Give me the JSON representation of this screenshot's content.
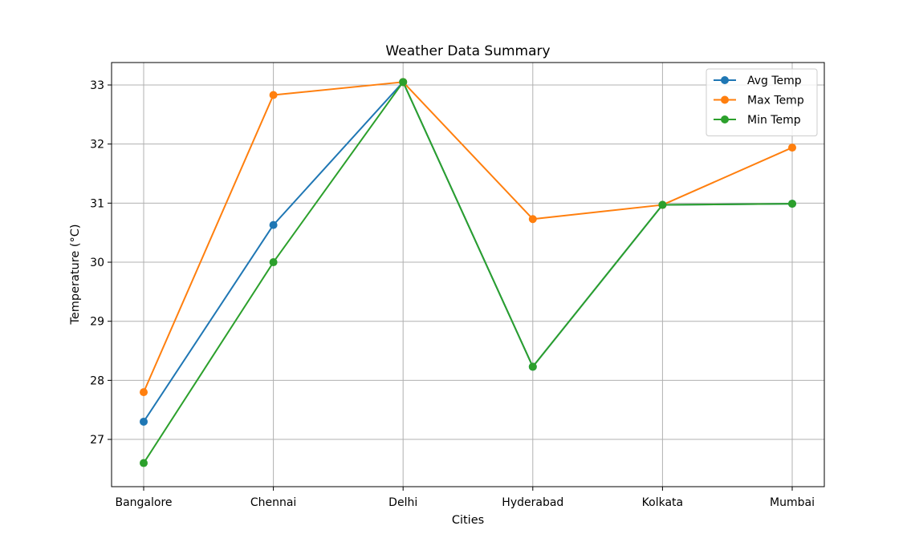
{
  "chart_data": {
    "type": "line",
    "title": "Weather Data Summary",
    "xlabel": "Cities",
    "ylabel": "Temperature (°C)",
    "categories": [
      "Bangalore",
      "Chennai",
      "Delhi",
      "Hyderabad",
      "Kolkata",
      "Mumbai"
    ],
    "y_ticks": [
      "27",
      "28",
      "29",
      "30",
      "31",
      "32",
      "33"
    ],
    "ylim": [
      26.2,
      33.38
    ],
    "grid": true,
    "legend_position": "top-right",
    "series": [
      {
        "name": "Avg Temp",
        "color": "#1f77b4",
        "values": [
          27.3,
          30.63,
          33.05,
          28.23,
          30.97,
          30.99
        ]
      },
      {
        "name": "Max Temp",
        "color": "#ff7f0e",
        "values": [
          27.8,
          32.83,
          33.05,
          30.73,
          30.97,
          31.94
        ]
      },
      {
        "name": "Min Temp",
        "color": "#2ca02c",
        "values": [
          26.6,
          30.0,
          33.05,
          28.23,
          30.97,
          30.99
        ]
      }
    ]
  }
}
